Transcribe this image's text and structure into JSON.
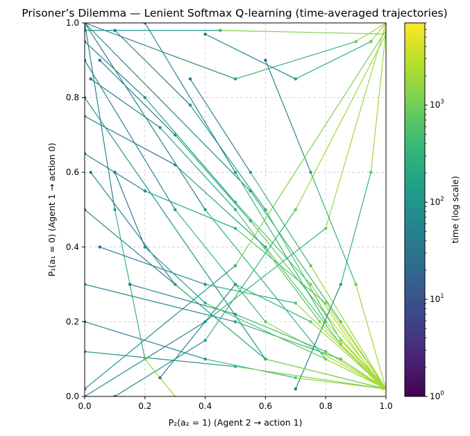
{
  "chart_data": {
    "type": "line",
    "title": "Prisoner’s Dilemma — Lenient Softmax Q-learning (time-averaged trajectories)",
    "xlabel": "P₂(a₂ = 1)  (Agent 2 → action 1)",
    "ylabel": "P₁(a₁ = 0)  (Agent 1 → action 0)",
    "xlim": [
      0,
      1
    ],
    "ylim": [
      0,
      1
    ],
    "xticks": [
      "0.0",
      "0.2",
      "0.4",
      "0.6",
      "0.8",
      "1.0"
    ],
    "yticks": [
      "0.0",
      "0.2",
      "0.4",
      "0.6",
      "0.8",
      "1.0"
    ],
    "grid": true,
    "colorbar": {
      "label": "time (log scale)",
      "scale": "log",
      "range": [
        1,
        7000
      ],
      "ticks": [
        {
          "base": "10",
          "exp": "0"
        },
        {
          "base": "10",
          "exp": "1"
        },
        {
          "base": "10",
          "exp": "2"
        },
        {
          "base": "10",
          "exp": "3"
        }
      ],
      "colormap": [
        "#440154",
        "#482878",
        "#3e4989",
        "#31688e",
        "#26828e",
        "#1f9e89",
        "#35b779",
        "#6ece58",
        "#b5de2b",
        "#fde725"
      ]
    },
    "series": [
      {
        "values": [
          [
            0.0,
            1.0
          ],
          [
            0.55,
            0.55
          ],
          [
            0.85,
            0.2
          ],
          [
            1.0,
            0.02
          ]
        ]
      },
      {
        "values": [
          [
            0.0,
            0.95
          ],
          [
            0.2,
            0.8
          ],
          [
            0.5,
            0.52
          ],
          [
            0.75,
            0.3
          ],
          [
            0.98,
            0.03
          ]
        ]
      },
      {
        "values": [
          [
            0.05,
            0.9
          ],
          [
            0.3,
            0.7
          ],
          [
            0.55,
            0.47
          ],
          [
            0.8,
            0.22
          ],
          [
            1.0,
            0.02
          ]
        ]
      },
      {
        "values": [
          [
            0.02,
            0.85
          ],
          [
            0.25,
            0.72
          ],
          [
            0.5,
            0.5
          ],
          [
            0.78,
            0.2
          ],
          [
            0.99,
            0.02
          ]
        ]
      },
      {
        "values": [
          [
            0.1,
            0.98
          ],
          [
            0.35,
            0.78
          ],
          [
            0.6,
            0.5
          ],
          [
            0.85,
            0.15
          ],
          [
            1.0,
            0.02
          ]
        ]
      },
      {
        "values": [
          [
            0.0,
            0.75
          ],
          [
            0.3,
            0.62
          ],
          [
            0.6,
            0.4
          ],
          [
            0.85,
            0.14
          ],
          [
            1.0,
            0.02
          ]
        ]
      },
      {
        "values": [
          [
            0.0,
            1.0
          ],
          [
            0.4,
            0.5
          ],
          [
            0.8,
            0.1
          ],
          [
            1.0,
            0.02
          ]
        ]
      },
      {
        "values": [
          [
            0.0,
            0.0
          ],
          [
            0.4,
            0.2
          ],
          [
            0.8,
            0.45
          ],
          [
            1.0,
            1.0
          ]
        ]
      },
      {
        "values": [
          [
            0.0,
            1.0
          ],
          [
            0.5,
            0.85
          ],
          [
            0.9,
            0.95
          ],
          [
            1.0,
            1.0
          ]
        ]
      },
      {
        "values": [
          [
            0.0,
            0.98
          ],
          [
            0.45,
            0.98
          ],
          [
            1.0,
            0.97
          ]
        ]
      },
      {
        "values": [
          [
            0.0,
            0.5
          ],
          [
            0.3,
            0.3
          ],
          [
            0.6,
            0.1
          ],
          [
            1.0,
            0.02
          ]
        ]
      },
      {
        "values": [
          [
            0.0,
            0.2
          ],
          [
            0.4,
            0.1
          ],
          [
            0.7,
            0.05
          ],
          [
            1.0,
            0.02
          ]
        ]
      },
      {
        "values": [
          [
            0.1,
            0.0
          ],
          [
            0.4,
            0.15
          ],
          [
            0.7,
            0.5
          ],
          [
            1.0,
            0.97
          ]
        ]
      },
      {
        "values": [
          [
            0.02,
            0.6
          ],
          [
            0.3,
            0.3
          ],
          [
            0.6,
            0.1
          ],
          [
            1.0,
            0.02
          ]
        ]
      },
      {
        "values": [
          [
            0.0,
            0.12
          ],
          [
            0.5,
            0.08
          ],
          [
            1.0,
            0.02
          ]
        ]
      },
      {
        "values": [
          [
            0.0,
            0.9
          ],
          [
            0.3,
            0.5
          ],
          [
            0.6,
            0.2
          ],
          [
            1.0,
            0.02
          ]
        ]
      },
      {
        "values": [
          [
            0.2,
            1.0
          ],
          [
            0.5,
            0.6
          ],
          [
            0.8,
            0.2
          ],
          [
            1.0,
            0.02
          ]
        ]
      },
      {
        "values": [
          [
            0.0,
            1.0
          ],
          [
            0.1,
            0.5
          ],
          [
            0.2,
            0.1
          ],
          [
            0.3,
            0.0
          ]
        ]
      },
      {
        "values": [
          [
            0.0,
            0.65
          ],
          [
            0.2,
            0.55
          ],
          [
            0.5,
            0.45
          ],
          [
            0.8,
            0.25
          ],
          [
            1.0,
            0.02
          ]
        ]
      },
      {
        "values": [
          [
            0.6,
            0.9
          ],
          [
            0.75,
            0.6
          ],
          [
            0.9,
            0.3
          ],
          [
            1.0,
            0.02
          ]
        ]
      },
      {
        "values": [
          [
            0.4,
            0.97
          ],
          [
            0.7,
            0.85
          ],
          [
            0.95,
            0.95
          ],
          [
            1.0,
            1.0
          ]
        ]
      },
      {
        "values": [
          [
            0.05,
            0.4
          ],
          [
            0.4,
            0.3
          ],
          [
            0.7,
            0.25
          ],
          [
            1.0,
            0.02
          ]
        ]
      },
      {
        "values": [
          [
            0.0,
            0.02
          ],
          [
            0.5,
            0.35
          ],
          [
            1.0,
            0.98
          ]
        ]
      },
      {
        "values": [
          [
            0.15,
            0.3
          ],
          [
            0.5,
            0.22
          ],
          [
            0.8,
            0.12
          ],
          [
            1.0,
            0.02
          ]
        ]
      },
      {
        "values": [
          [
            0.35,
            0.85
          ],
          [
            0.55,
            0.6
          ],
          [
            0.75,
            0.35
          ],
          [
            1.0,
            0.02
          ]
        ]
      },
      {
        "values": [
          [
            0.0,
            0.3
          ],
          [
            0.5,
            0.2
          ],
          [
            0.85,
            0.1
          ],
          [
            1.0,
            0.02
          ]
        ]
      },
      {
        "values": [
          [
            0.7,
            0.02
          ],
          [
            0.85,
            0.3
          ],
          [
            0.95,
            0.6
          ],
          [
            1.0,
            0.98
          ]
        ]
      },
      {
        "values": [
          [
            0.0,
            0.8
          ],
          [
            0.6,
            0.1
          ],
          [
            1.0,
            0.02
          ]
        ]
      },
      {
        "values": [
          [
            0.1,
            0.6
          ],
          [
            0.2,
            0.4
          ],
          [
            0.4,
            0.25
          ],
          [
            0.8,
            0.1
          ],
          [
            1.0,
            0.02
          ]
        ]
      },
      {
        "values": [
          [
            0.25,
            0.05
          ],
          [
            0.5,
            0.3
          ],
          [
            0.75,
            0.2
          ],
          [
            1.0,
            0.02
          ]
        ]
      }
    ]
  }
}
